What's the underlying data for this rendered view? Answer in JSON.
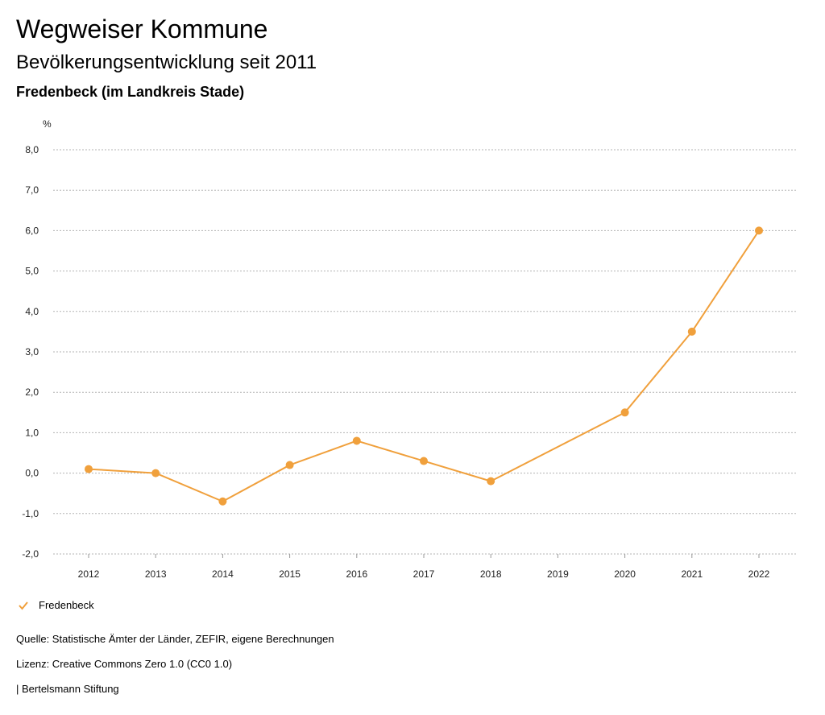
{
  "header": {
    "title": "Wegweiser Kommune",
    "subtitle": "Bevölkerungsentwicklung seit 2011",
    "region": "Fredenbeck (im Landkreis Stade)"
  },
  "chart_data": {
    "type": "line",
    "ylabel": "%",
    "ylim": [
      -2.0,
      8.0
    ],
    "yticks": [
      "8,0",
      "7,0",
      "6,0",
      "5,0",
      "4,0",
      "3,0",
      "2,0",
      "1,0",
      "0,0",
      "-1,0",
      "-2,0"
    ],
    "ytick_values": [
      8,
      7,
      6,
      5,
      4,
      3,
      2,
      1,
      0,
      -1,
      -2
    ],
    "categories": [
      "2012",
      "2013",
      "2014",
      "2015",
      "2016",
      "2017",
      "2018",
      "2019",
      "2020",
      "2021",
      "2022"
    ],
    "grid": true,
    "series": [
      {
        "name": "Fredenbeck",
        "color": "#f0a03c",
        "points": [
          {
            "x": "2012",
            "y": 0.1
          },
          {
            "x": "2013",
            "y": 0.0
          },
          {
            "x": "2014",
            "y": -0.7
          },
          {
            "x": "2015",
            "y": 0.2
          },
          {
            "x": "2016",
            "y": 0.8
          },
          {
            "x": "2017",
            "y": 0.3
          },
          {
            "x": "2018",
            "y": -0.2
          },
          {
            "x": "2020",
            "y": 1.5
          },
          {
            "x": "2021",
            "y": 3.5
          },
          {
            "x": "2022",
            "y": 6.0
          }
        ]
      }
    ]
  },
  "legend": {
    "label": "Fredenbeck",
    "color": "#f0a03c",
    "icon": "check-icon"
  },
  "footer": {
    "source": "Quelle: Statistische Ämter der Länder, ZEFIR, eigene Berechnungen",
    "license": "Lizenz: Creative Commons Zero 1.0 (CC0 1.0)",
    "publisher": "| Bertelsmann Stiftung"
  }
}
